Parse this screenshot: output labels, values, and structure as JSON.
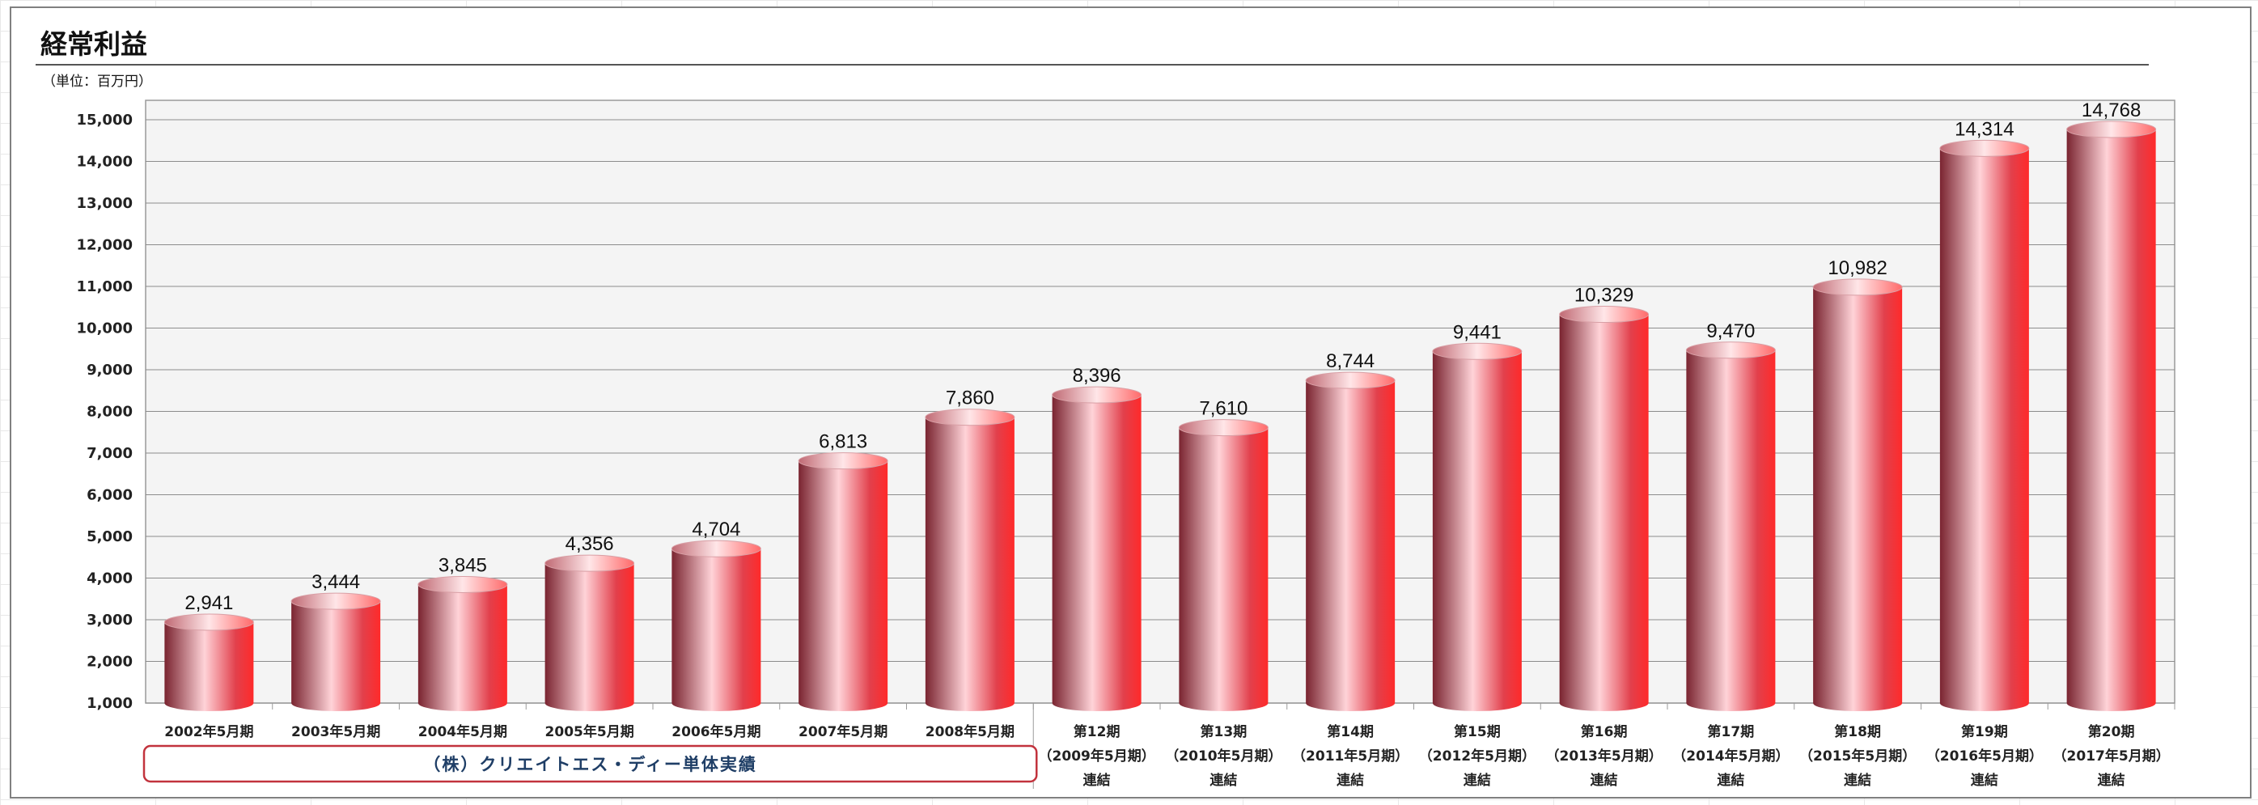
{
  "chart_data": {
    "type": "bar",
    "title": "経常利益",
    "subtitle": "（単位：百万円）",
    "ylim": [
      1000,
      15000
    ],
    "yticks": [
      "1,000",
      "2,000",
      "3,000",
      "4,000",
      "5,000",
      "6,000",
      "7,000",
      "8,000",
      "9,000",
      "10,000",
      "11,000",
      "12,000",
      "13,000",
      "14,000",
      "15,000"
    ],
    "categories": [
      [
        "2002年5月期"
      ],
      [
        "2003年5月期"
      ],
      [
        "2004年5月期"
      ],
      [
        "2005年5月期"
      ],
      [
        "2006年5月期"
      ],
      [
        "2007年5月期"
      ],
      [
        "2008年5月期"
      ],
      [
        "第12期",
        "（2009年5月期）",
        "連結"
      ],
      [
        "第13期",
        "（2010年5月期）",
        "連結"
      ],
      [
        "第14期",
        "（2011年5月期）",
        "連結"
      ],
      [
        "第15期",
        "（2012年5月期）",
        "連結"
      ],
      [
        "第16期",
        "（2013年5月期）",
        "連結"
      ],
      [
        "第17期",
        "（2014年5月期）",
        "連結"
      ],
      [
        "第18期",
        "（2015年5月期）",
        "連結"
      ],
      [
        "第19期",
        "（2016年5月期）",
        "連結"
      ],
      [
        "第20期",
        "（2017年5月期）",
        "連結"
      ]
    ],
    "values": [
      2941,
      3444,
      3845,
      4356,
      4704,
      6813,
      7860,
      8396,
      7610,
      8744,
      9441,
      10329,
      9470,
      10982,
      14314,
      14768
    ],
    "value_labels": [
      "2,941",
      "3,444",
      "3,845",
      "4,356",
      "4,704",
      "6,813",
      "7,860",
      "8,396",
      "7,610",
      "8,744",
      "9,441",
      "10,329",
      "9,470",
      "10,982",
      "14,314",
      "14,768"
    ],
    "annotation": {
      "text": "（株）クリエイトエス・ディー単体実績",
      "first_index": 0,
      "last_index": 6
    },
    "grid": true,
    "colors": {
      "bar_dark": "#7a2430",
      "bar_light": "#ffd3d8",
      "bar_mid": "#e2404c",
      "bar_edge": "#ff2a2a",
      "plot_bg": "#f4f4f4",
      "annotation_border": "#c2333d"
    }
  }
}
